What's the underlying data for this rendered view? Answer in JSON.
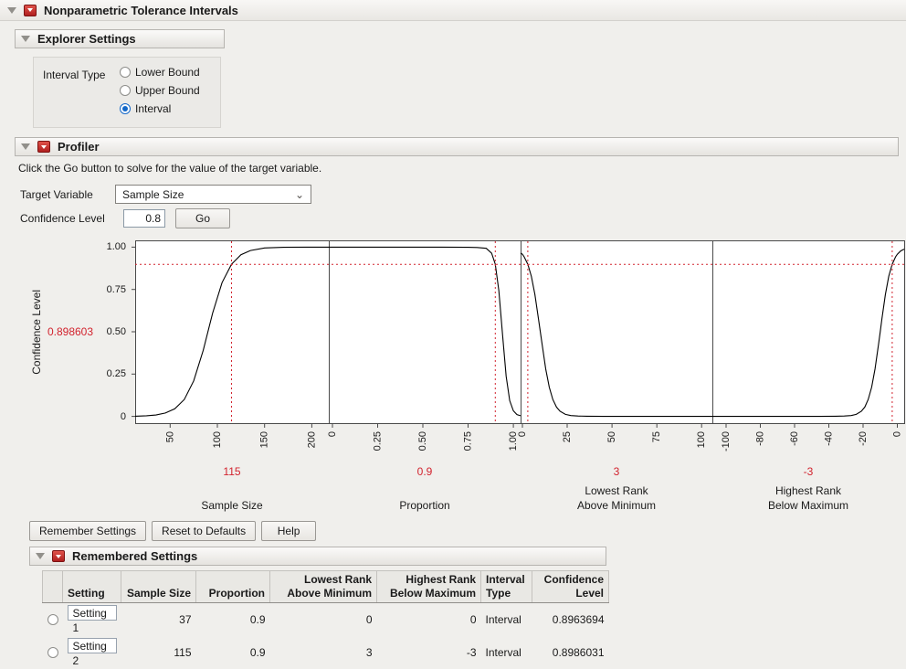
{
  "header": {
    "title": "Nonparametric Tolerance Intervals"
  },
  "explorer": {
    "title": "Explorer Settings",
    "interval_type_label": "Interval Type",
    "options": [
      {
        "label": "Lower Bound",
        "selected": false
      },
      {
        "label": "Upper Bound",
        "selected": false
      },
      {
        "label": "Interval",
        "selected": true
      }
    ]
  },
  "profiler": {
    "title": "Profiler",
    "instruction": "Click the Go button to solve for the value of the target variable.",
    "target_variable_label": "Target Variable",
    "target_variable_value": "Sample Size",
    "confidence_label": "Confidence Level",
    "confidence_value": "0.8",
    "go_label": "Go",
    "accent": "#d2232e",
    "y_axis_label": "Confidence Level",
    "y_current_value": 0.898603,
    "y_current_label": "0.898603",
    "y_ticks": [
      {
        "v": 1.0,
        "label": "1.00"
      },
      {
        "v": 0.75,
        "label": "0.75"
      },
      {
        "v": 0.5,
        "label": "0.50"
      },
      {
        "v": 0.25,
        "label": "0.25"
      },
      {
        "v": 0,
        "label": "0"
      }
    ],
    "panels": [
      {
        "name": "Sample Size",
        "current": 115,
        "current_label": "115",
        "xmin": 13,
        "xmax": 218,
        "ticks": [
          {
            "v": 50,
            "label": "50"
          },
          {
            "v": 100,
            "label": "100"
          },
          {
            "v": 150,
            "label": "150"
          },
          {
            "v": 200,
            "label": "200"
          }
        ],
        "curve": [
          [
            13,
            0.001
          ],
          [
            25,
            0.004
          ],
          [
            35,
            0.008
          ],
          [
            45,
            0.02
          ],
          [
            55,
            0.045
          ],
          [
            65,
            0.1
          ],
          [
            75,
            0.21
          ],
          [
            85,
            0.39
          ],
          [
            95,
            0.61
          ],
          [
            105,
            0.79
          ],
          [
            115,
            0.899
          ],
          [
            125,
            0.955
          ],
          [
            135,
            0.98
          ],
          [
            150,
            0.995
          ],
          [
            170,
            0.999
          ],
          [
            195,
            1.0
          ],
          [
            218,
            1.0
          ]
        ]
      },
      {
        "name": "Proportion",
        "current": 0.9,
        "current_label": "0.9",
        "xmin": -0.02,
        "xmax": 1.04,
        "ticks": [
          {
            "v": 0,
            "label": "0"
          },
          {
            "v": 0.25,
            "label": "0.25"
          },
          {
            "v": 0.5,
            "label": "0.50"
          },
          {
            "v": 0.75,
            "label": "0.75"
          },
          {
            "v": 1.0,
            "label": "1.00"
          }
        ],
        "curve": [
          [
            -0.02,
            1.0
          ],
          [
            0.3,
            1.0
          ],
          [
            0.6,
            1.0
          ],
          [
            0.75,
            0.999
          ],
          [
            0.8,
            0.998
          ],
          [
            0.85,
            0.993
          ],
          [
            0.88,
            0.964
          ],
          [
            0.9,
            0.899
          ],
          [
            0.92,
            0.743
          ],
          [
            0.94,
            0.486
          ],
          [
            0.96,
            0.237
          ],
          [
            0.98,
            0.093
          ],
          [
            1.0,
            0.033
          ],
          [
            1.02,
            0.011
          ],
          [
            1.04,
            0.004
          ]
        ]
      },
      {
        "name": "Lowest Rank\nAbove Minimum",
        "current": 3,
        "current_label": "3",
        "xmin": -1,
        "xmax": 106,
        "ticks": [
          {
            "v": 0,
            "label": "0"
          },
          {
            "v": 25,
            "label": "25"
          },
          {
            "v": 50,
            "label": "50"
          },
          {
            "v": 75,
            "label": "75"
          },
          {
            "v": 100,
            "label": "100"
          }
        ],
        "curve": [
          [
            -1,
            0.965
          ],
          [
            0,
            0.958
          ],
          [
            1,
            0.943
          ],
          [
            3,
            0.899
          ],
          [
            5,
            0.827
          ],
          [
            7,
            0.719
          ],
          [
            9,
            0.575
          ],
          [
            10,
            0.5
          ],
          [
            11,
            0.425
          ],
          [
            13,
            0.281
          ],
          [
            15,
            0.173
          ],
          [
            17,
            0.1
          ],
          [
            19,
            0.055
          ],
          [
            21,
            0.03
          ],
          [
            24,
            0.012
          ],
          [
            27,
            0.005
          ],
          [
            31,
            0.002
          ],
          [
            36,
            0.001
          ],
          [
            45,
            0.0
          ],
          [
            106,
            0.0
          ]
        ]
      },
      {
        "name": "Highest Rank\nBelow Maximum",
        "current": -3,
        "current_label": "-3",
        "xmin": -108,
        "xmax": 4,
        "ticks": [
          {
            "v": -100,
            "label": "-100"
          },
          {
            "v": -80,
            "label": "-80"
          },
          {
            "v": -60,
            "label": "-60"
          },
          {
            "v": -40,
            "label": "-40"
          },
          {
            "v": -20,
            "label": "-20"
          },
          {
            "v": 0,
            "label": "0"
          }
        ],
        "curve": [
          [
            -108,
            0.0
          ],
          [
            -45,
            0.0
          ],
          [
            -36,
            0.001
          ],
          [
            -31,
            0.002
          ],
          [
            -27,
            0.005
          ],
          [
            -24,
            0.012
          ],
          [
            -21,
            0.03
          ],
          [
            -19,
            0.055
          ],
          [
            -17,
            0.1
          ],
          [
            -15,
            0.173
          ],
          [
            -13,
            0.281
          ],
          [
            -11,
            0.425
          ],
          [
            -10,
            0.5
          ],
          [
            -9,
            0.575
          ],
          [
            -7,
            0.719
          ],
          [
            -5,
            0.827
          ],
          [
            -3,
            0.899
          ],
          [
            -1,
            0.943
          ],
          [
            0,
            0.958
          ],
          [
            2,
            0.978
          ],
          [
            4,
            0.988
          ]
        ]
      }
    ]
  },
  "action_buttons": [
    {
      "label": "Remember Settings"
    },
    {
      "label": "Reset to Defaults"
    },
    {
      "label": "Help"
    }
  ],
  "remembered": {
    "title": "Remembered Settings",
    "columns": [
      "",
      "Setting",
      "Sample Size",
      "Proportion",
      "Lowest Rank\nAbove Minimum",
      "Highest Rank\nBelow Maximum",
      "Interval\nType",
      "Confidence\nLevel"
    ],
    "rows": [
      {
        "setting": "Setting 1",
        "values": [
          "37",
          "0.9",
          "0",
          "0",
          "Interval",
          "0.8963694"
        ]
      },
      {
        "setting": "Setting 2",
        "values": [
          "115",
          "0.9",
          "3",
          "-3",
          "Interval",
          "0.8986031"
        ]
      }
    ]
  },
  "icons": {
    "chevron_down": "⌄"
  }
}
